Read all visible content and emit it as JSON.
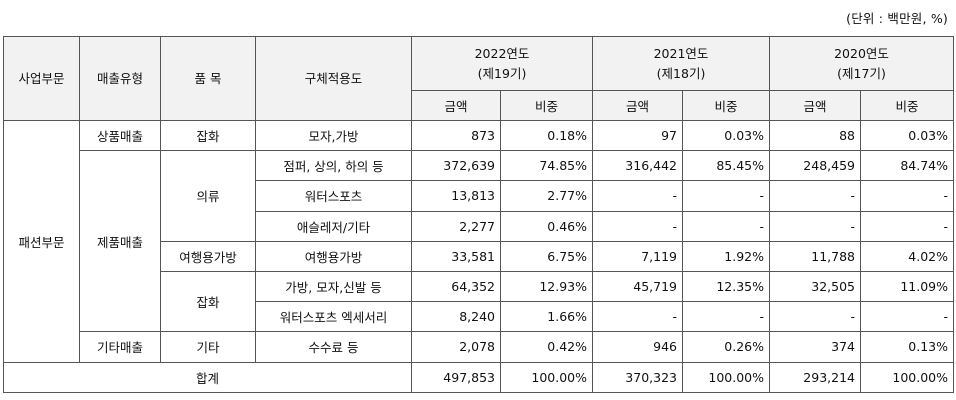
{
  "unit_note": "(단위 : 백만원, %)",
  "headers": {
    "segment": "사업부문",
    "sales_type": "매출유형",
    "item": "품 목",
    "usage": "구체적용도",
    "years": [
      {
        "year": "2022연도",
        "period": "(제19기)"
      },
      {
        "year": "2021연도",
        "period": "(제18기)"
      },
      {
        "year": "2020연도",
        "period": "(제17기)"
      }
    ],
    "amount": "금액",
    "ratio": "비중"
  },
  "segment_name": "패션부문",
  "sales_types": {
    "goods": "상품매출",
    "products": "제품매출",
    "other": "기타매출"
  },
  "items": {
    "misc": "잡화",
    "apparel": "의류",
    "travel_bags": "여행용가방",
    "misc2": "잡화",
    "other": "기타"
  },
  "rows": [
    {
      "usage": "모자,가방",
      "values": [
        "873",
        "0.18%",
        "97",
        "0.03%",
        "88",
        "0.03%"
      ]
    },
    {
      "usage": "점퍼, 상의, 하의 등",
      "values": [
        "372,639",
        "74.85%",
        "316,442",
        "85.45%",
        "248,459",
        "84.74%"
      ]
    },
    {
      "usage": "워터스포츠",
      "values": [
        "13,813",
        "2.77%",
        "-",
        "-",
        "-",
        "-"
      ]
    },
    {
      "usage": "애슬레저/기타",
      "values": [
        "2,277",
        "0.46%",
        "-",
        "-",
        "-",
        "-"
      ]
    },
    {
      "usage": "여행용가방",
      "values": [
        "33,581",
        "6.75%",
        "7,119",
        "1.92%",
        "11,788",
        "4.02%"
      ]
    },
    {
      "usage": "가방, 모자,신발 등",
      "values": [
        "64,352",
        "12.93%",
        "45,719",
        "12.35%",
        "32,505",
        "11.09%"
      ]
    },
    {
      "usage": "워터스포츠 엑세서리",
      "values": [
        "8,240",
        "1.66%",
        "-",
        "-",
        "-",
        "-"
      ]
    },
    {
      "usage": "수수료 등",
      "values": [
        "2,078",
        "0.42%",
        "946",
        "0.26%",
        "374",
        "0.13%"
      ]
    }
  ],
  "total": {
    "label": "합계",
    "values": [
      "497,853",
      "100.00%",
      "370,323",
      "100.00%",
      "293,214",
      "100.00%"
    ]
  }
}
